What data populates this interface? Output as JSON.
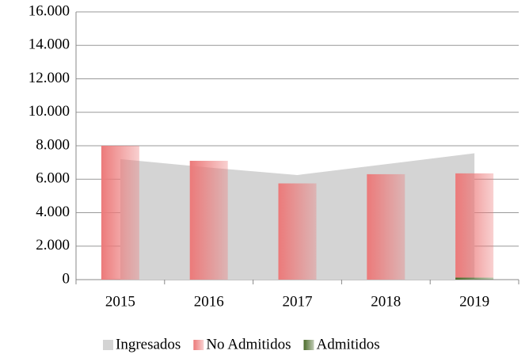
{
  "chart_data": {
    "type": "bar_area",
    "categories": [
      "2015",
      "2016",
      "2017",
      "2018",
      "2019"
    ],
    "series": [
      {
        "name": "Ingresados",
        "type": "area",
        "color": "#d4d4d4",
        "values": [
          7200,
          6700,
          6250,
          6900,
          7550
        ]
      },
      {
        "name": "No Admitidos",
        "type": "bar",
        "color": "#ec7a7a",
        "values": [
          8000,
          7100,
          5750,
          6300,
          6230
        ]
      },
      {
        "name": "Admitidos",
        "type": "bar",
        "color": "#4a6b2a",
        "values": [
          0,
          0,
          0,
          0,
          120
        ]
      }
    ],
    "stacked": true,
    "ylim": [
      0,
      16000
    ],
    "yticks": [
      0,
      {
        "value": 2000,
        "label": "2.000"
      },
      {
        "value": 4000,
        "label": "4.000"
      },
      {
        "value": 6000,
        "label": "6.000"
      },
      {
        "value": 8000,
        "label": "8.000"
      },
      {
        "value": 10000,
        "label": "10.000"
      },
      {
        "value": 12000,
        "label": "12.000"
      },
      {
        "value": 14000,
        "label": "14.000"
      },
      {
        "value": 16000,
        "label": "16.000"
      }
    ],
    "grid": true,
    "legend": "bottom"
  }
}
